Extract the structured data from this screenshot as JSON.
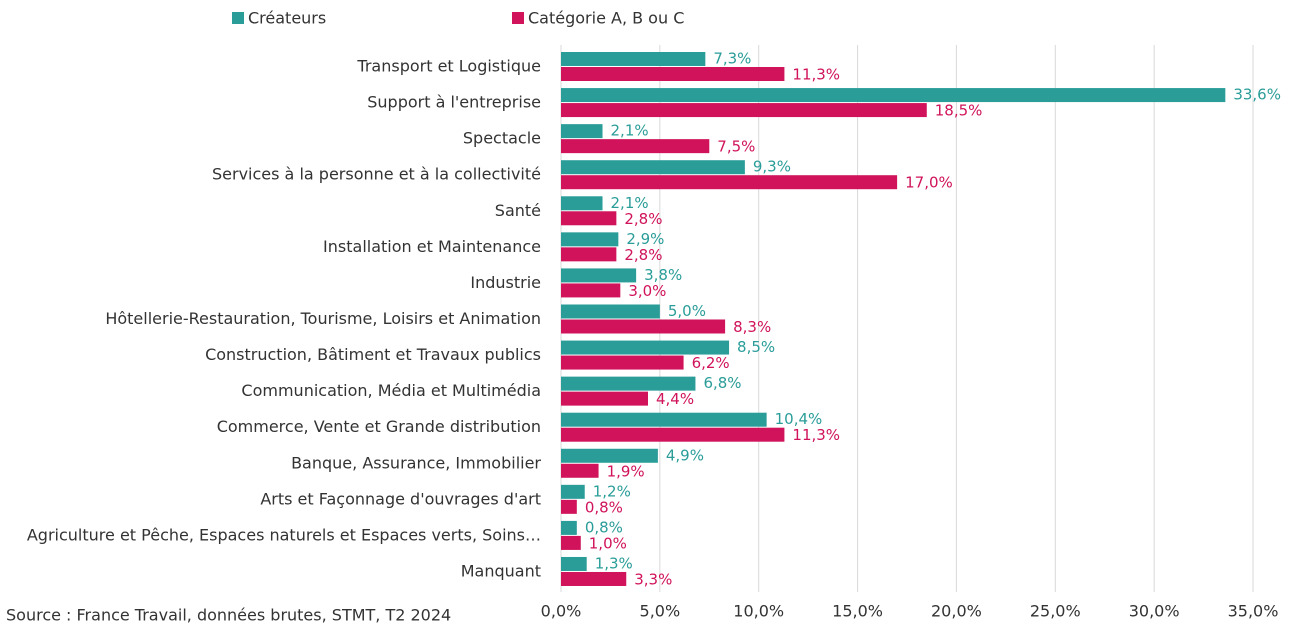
{
  "chart_data": {
    "type": "barh",
    "categories": [
      "Transport et Logistique",
      "Support à l'entreprise",
      "Spectacle",
      "Services à la personne et à la collectivité",
      "Santé",
      "Installation et Maintenance",
      "Industrie",
      "Hôtellerie-Restauration, Tourisme, Loisirs et Animation",
      "Construction, Bâtiment et Travaux publics",
      "Communication, Média et Multimédia",
      "Commerce, Vente et Grande distribution",
      "Banque, Assurance, Immobilier",
      "Arts et Façonnage d'ouvrages d'art",
      "Agriculture et Pêche, Espaces naturels et Espaces verts, Soins…",
      "Manquant"
    ],
    "series": [
      {
        "name": "Créateurs",
        "color": "#2a9d99",
        "values": [
          7.3,
          33.6,
          2.1,
          9.3,
          2.1,
          2.9,
          3.8,
          5.0,
          8.5,
          6.8,
          10.4,
          4.9,
          1.2,
          0.8,
          1.3
        ],
        "value_labels": [
          "7,3%",
          "33,6%",
          "2,1%",
          "9,3%",
          "2,1%",
          "2,9%",
          "3,8%",
          "5,0%",
          "8,5%",
          "6,8%",
          "10,4%",
          "4,9%",
          "1,2%",
          "0,8%",
          "1,3%"
        ]
      },
      {
        "name": "Catégorie A, B ou C",
        "color": "#d0135a",
        "values": [
          11.3,
          18.5,
          7.5,
          17.0,
          2.8,
          2.8,
          3.0,
          8.3,
          6.2,
          4.4,
          11.3,
          1.9,
          0.8,
          1.0,
          3.3
        ],
        "value_labels": [
          "11,3%",
          "18,5%",
          "7,5%",
          "17,0%",
          "2,8%",
          "2,8%",
          "3,0%",
          "8,3%",
          "6,2%",
          "4,4%",
          "11,3%",
          "1,9%",
          "0,8%",
          "1,0%",
          "3,3%"
        ]
      }
    ],
    "xlim": [
      0,
      35
    ],
    "xticks": [
      {
        "value": 0,
        "label": "0,0%"
      },
      {
        "value": 5,
        "label": "5,0%"
      },
      {
        "value": 10,
        "label": "10,0%"
      },
      {
        "value": 15,
        "label": "15,0%"
      },
      {
        "value": 20,
        "label": "20,0%"
      },
      {
        "value": 25,
        "label": "25,0%"
      },
      {
        "value": 30,
        "label": "30,0%"
      },
      {
        "value": 35,
        "label": "35,0%"
      }
    ],
    "grid": true,
    "legend": "top",
    "source": "Source : France Travail, données brutes, STMT, T2 2024"
  }
}
